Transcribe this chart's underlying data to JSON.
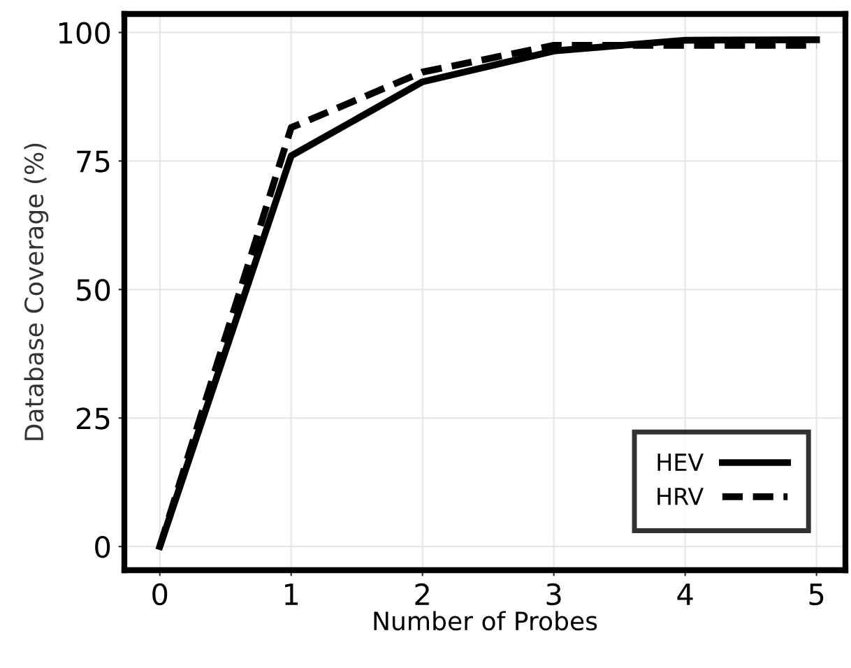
{
  "chart_data": {
    "type": "line",
    "xlabel": "Number of Probes",
    "ylabel": "Database Coverage (%)",
    "x": [
      0,
      1,
      2,
      3,
      4,
      5
    ],
    "series": [
      {
        "name": "HEV",
        "color": "#000000",
        "line_style": "solid",
        "values": [
          0,
          76,
          90.4,
          96.4,
          98.5,
          98.6
        ]
      },
      {
        "name": "HRV",
        "color": "#000000",
        "line_style": "dashed",
        "values": [
          0,
          81.5,
          92.3,
          97.5,
          97.5,
          97.5
        ]
      }
    ],
    "xlim": [
      -0.27,
      5.22
    ],
    "ylim": [
      -4.6,
      103.6
    ],
    "xticks": [
      0,
      1,
      2,
      3,
      4,
      5
    ],
    "yticks": [
      0,
      25,
      50,
      75,
      100
    ],
    "grid": true,
    "legend": "bottom right",
    "marker": "none"
  }
}
